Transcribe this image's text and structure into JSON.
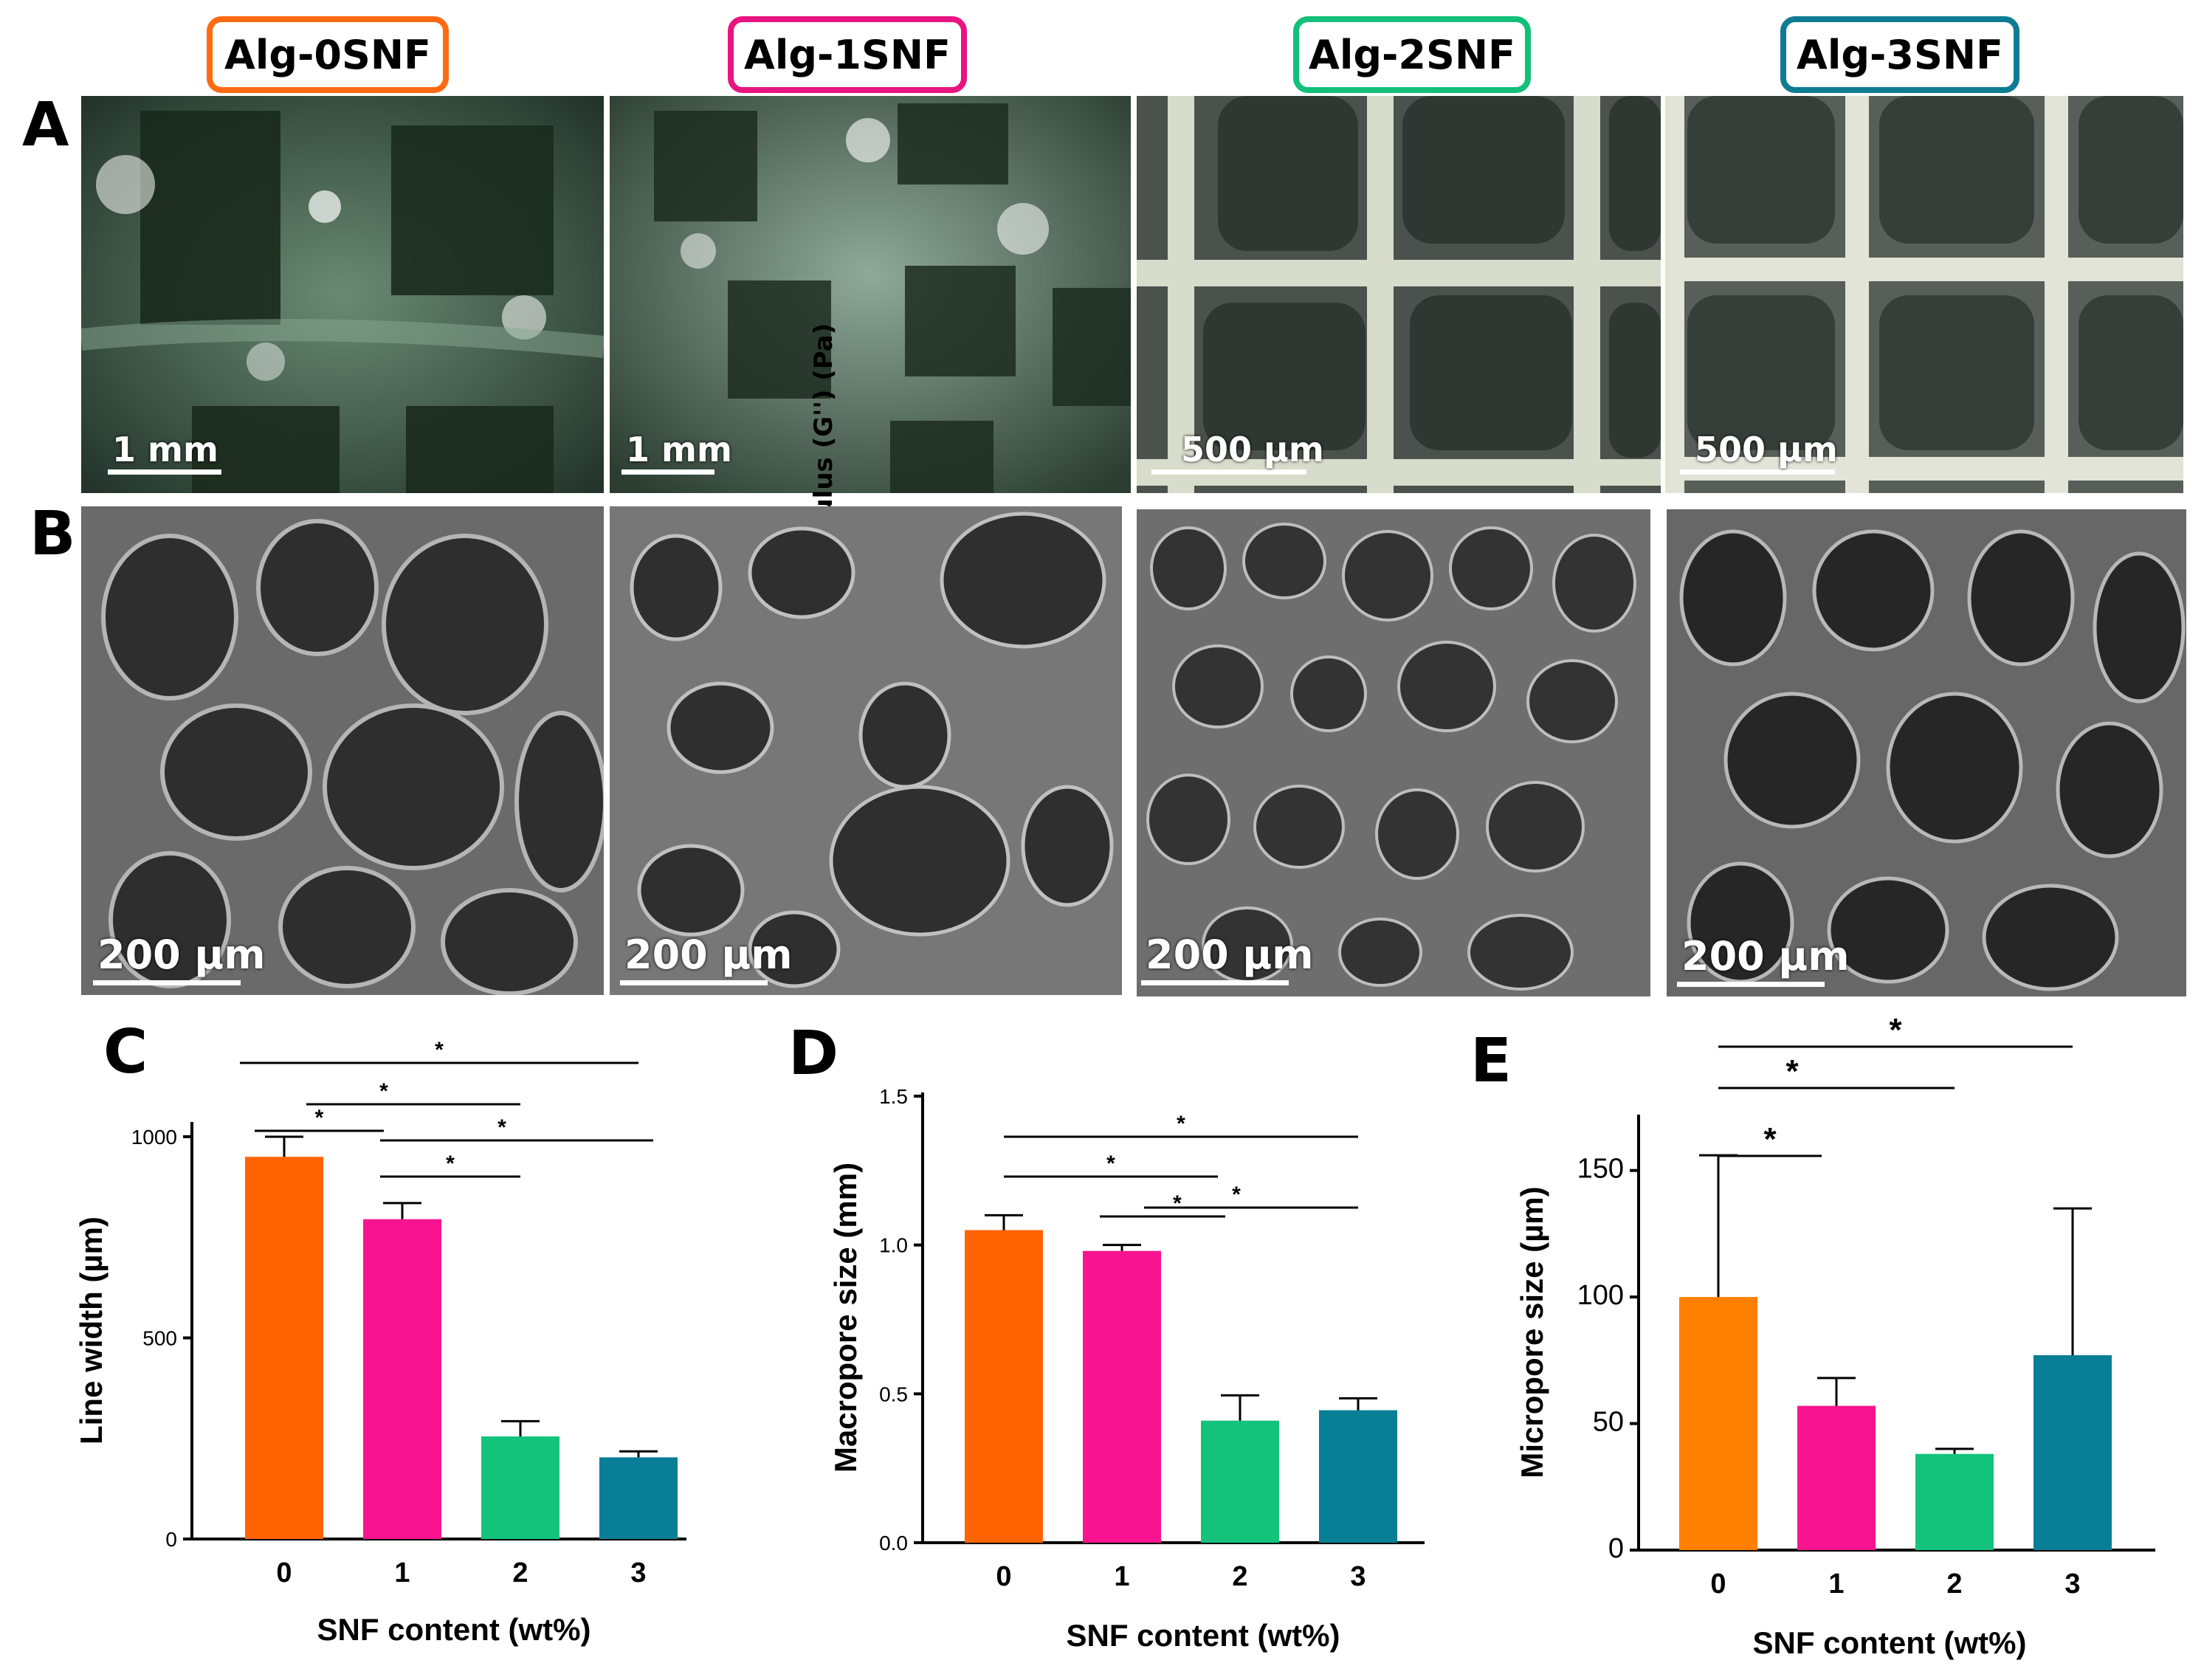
{
  "samples": [
    {
      "label": "Alg-0SNF",
      "color": "#ff6a13"
    },
    {
      "label": "Alg-1SNF",
      "color": "#e8147f"
    },
    {
      "label": "Alg-2SNF",
      "color": "#13c07a"
    },
    {
      "label": "Alg-3SNF",
      "color": "#0e7c93"
    }
  ],
  "panel_letters": [
    "A",
    "B",
    "C",
    "D",
    "E"
  ],
  "row_a_scalebars": [
    "1 mm",
    "1 mm",
    "500 µm",
    "500 µm"
  ],
  "row_a_overlay": "Loss modulus (G'') (Pa)",
  "row_b_scalebars": [
    "200 µm",
    "200 µm",
    "200 µm",
    "200 µm"
  ],
  "colors": {
    "orange": "#ff6200",
    "pink": "#f7148e",
    "green": "#13c37c",
    "teal": "#087f97",
    "orangeE": "#ff7f00"
  },
  "chart_data": [
    {
      "type": "bar",
      "categories": [
        "0",
        "1",
        "2",
        "3"
      ],
      "values": [
        950,
        795,
        255,
        203
      ],
      "errors": [
        50,
        40,
        38,
        15
      ],
      "xlabel": "SNF content (wt%)",
      "ylabel": "Line width (µm)",
      "ylim": [
        0,
        1000
      ],
      "yticks": [
        "0",
        "500",
        "1000"
      ],
      "significance": [
        {
          "from": "0",
          "to": "3",
          "label": "*"
        },
        {
          "from": "0",
          "to": "2",
          "label": "*"
        },
        {
          "from": "0",
          "to": "1",
          "label": "*"
        },
        {
          "from": "1",
          "to": "3",
          "label": "*"
        },
        {
          "from": "1",
          "to": "2",
          "label": "*"
        }
      ]
    },
    {
      "type": "bar",
      "categories": [
        "0",
        "1",
        "2",
        "3"
      ],
      "values": [
        1.05,
        0.98,
        0.41,
        0.445
      ],
      "errors": [
        0.05,
        0.02,
        0.085,
        0.04
      ],
      "xlabel": "SNF content (wt%)",
      "ylabel": "Macropore size (mm)",
      "ylim": [
        0,
        1.5
      ],
      "yticks": [
        "0.0",
        "0.5",
        "1.0",
        "1.5"
      ],
      "significance": [
        {
          "from": "0",
          "to": "3",
          "label": "*"
        },
        {
          "from": "0",
          "to": "2",
          "label": "*"
        },
        {
          "from": "1",
          "to": "2",
          "label": "*"
        },
        {
          "from": "1",
          "to": "3",
          "label": "*"
        }
      ]
    },
    {
      "type": "bar",
      "categories": [
        "0",
        "1",
        "2",
        "3"
      ],
      "values": [
        100,
        57,
        38,
        77
      ],
      "errors": [
        56,
        11,
        2,
        58
      ],
      "xlabel": "SNF content (wt%)",
      "ylabel": "Micropore size (µm)",
      "ylim": [
        0,
        175
      ],
      "yticks": [
        "0",
        "50",
        "100",
        "150"
      ],
      "significance": [
        {
          "from": "0",
          "to": "3",
          "label": "*"
        },
        {
          "from": "0",
          "to": "2",
          "label": "*"
        },
        {
          "from": "0",
          "to": "1",
          "label": "*"
        }
      ]
    }
  ]
}
